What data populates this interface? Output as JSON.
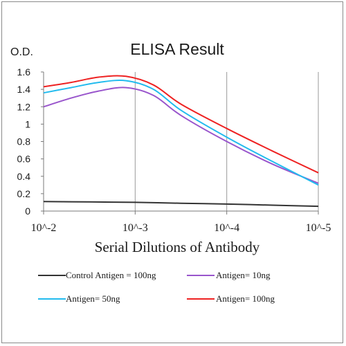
{
  "chart_data": {
    "type": "line",
    "title": "ELISA Result",
    "ylabel": "O.D.",
    "xlabel": "Serial Dilutions  of Antibody",
    "x_tick_labels": [
      "10^-2",
      "10^-3",
      "10^-4",
      "10^-5"
    ],
    "x_scale": "log",
    "x_domain": [
      -2,
      -5
    ],
    "y_tick_labels": [
      "0",
      "0.2",
      "0.4",
      "0.6",
      "0.8",
      "1",
      "1.2",
      "1.4",
      "1.6"
    ],
    "ylim": [
      0,
      1.6
    ],
    "grid": "vertical gridlines at each decade",
    "legend_position": "bottom",
    "series": [
      {
        "name": "Control Antigen = 100ng",
        "color": "#333333",
        "x": [
          -2,
          -2.5,
          -3,
          -3.5,
          -4,
          -4.5,
          -5
        ],
        "y": [
          0.11,
          0.105,
          0.1,
          0.09,
          0.08,
          0.068,
          0.055
        ]
      },
      {
        "name": "Antigen= 10ng",
        "color": "#9955cc",
        "x": [
          -2,
          -2.3,
          -2.6,
          -2.9,
          -3.2,
          -3.5,
          -4,
          -4.5,
          -5
        ],
        "y": [
          1.2,
          1.3,
          1.38,
          1.42,
          1.33,
          1.1,
          0.8,
          0.54,
          0.32
        ]
      },
      {
        "name": "Antigen= 50ng",
        "color": "#22bbee",
        "x": [
          -2,
          -2.3,
          -2.6,
          -2.9,
          -3.2,
          -3.5,
          -4,
          -4.5,
          -5
        ],
        "y": [
          1.36,
          1.42,
          1.48,
          1.5,
          1.4,
          1.16,
          0.85,
          0.57,
          0.3
        ]
      },
      {
        "name": "Antigen= 100ng",
        "color": "#ee2222",
        "x": [
          -2,
          -2.3,
          -2.6,
          -2.9,
          -3.2,
          -3.5,
          -4,
          -4.5,
          -5
        ],
        "y": [
          1.43,
          1.48,
          1.54,
          1.55,
          1.45,
          1.23,
          0.95,
          0.69,
          0.44
        ]
      }
    ]
  }
}
